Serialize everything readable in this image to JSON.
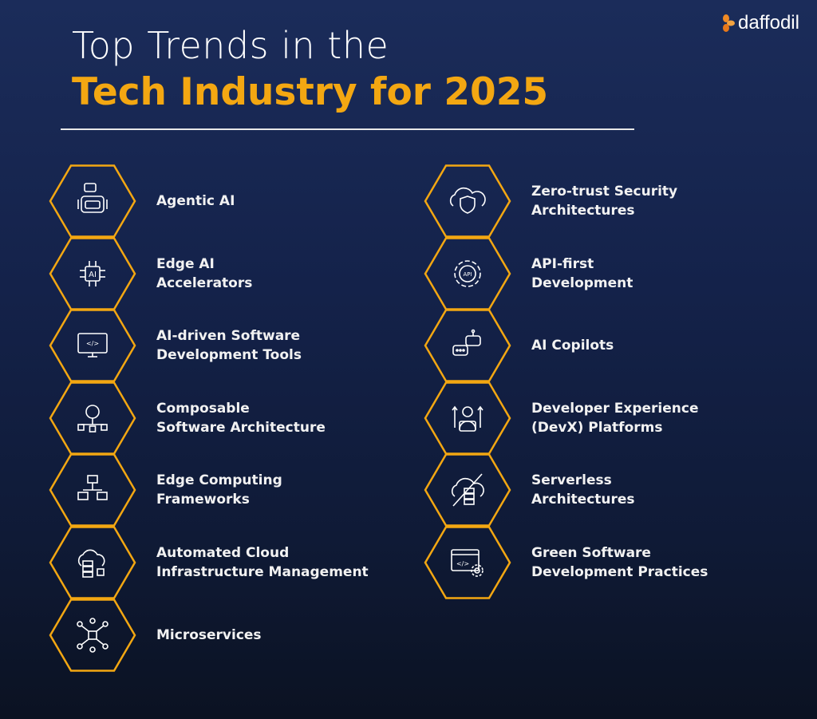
{
  "header": {
    "title_line1": "Top Trends in the",
    "title_line2": "Tech Industry for 2025",
    "logo_text": "daffodil"
  },
  "colors": {
    "accent": "#f3a712",
    "text": "#ffffff",
    "background_top": "#1b2c5a",
    "background_bottom": "#0b1222"
  },
  "left_column": [
    {
      "label": "Agentic AI",
      "icon": "robot-chat-icon"
    },
    {
      "label": "Edge AI\nAccelerators",
      "icon": "ai-chip-icon"
    },
    {
      "label": "AI-driven Software\nDevelopment Tools",
      "icon": "monitor-code-icon"
    },
    {
      "label": "Composable\nSoftware Architecture",
      "icon": "gear-network-icon"
    },
    {
      "label": "Edge Computing\nFrameworks",
      "icon": "network-computers-icon"
    },
    {
      "label": "Automated Cloud\nInfrastructure Management",
      "icon": "cloud-server-icon"
    },
    {
      "label": "Microservices",
      "icon": "cube-nodes-icon"
    }
  ],
  "right_column": [
    {
      "label": "Zero-trust Security\nArchitectures",
      "icon": "cloud-shield-icon"
    },
    {
      "label": "API-first\nDevelopment",
      "icon": "api-gear-icon"
    },
    {
      "label": "AI Copilots",
      "icon": "robot-chat-bubbles-icon"
    },
    {
      "label": "Developer Experience\n(DevX) Platforms",
      "icon": "developer-arrows-icon"
    },
    {
      "label": "Serverless\nArchitectures",
      "icon": "cloud-server-slash-icon"
    },
    {
      "label": "Green Software\nDevelopment Practices",
      "icon": "browser-code-gear-icon"
    }
  ]
}
